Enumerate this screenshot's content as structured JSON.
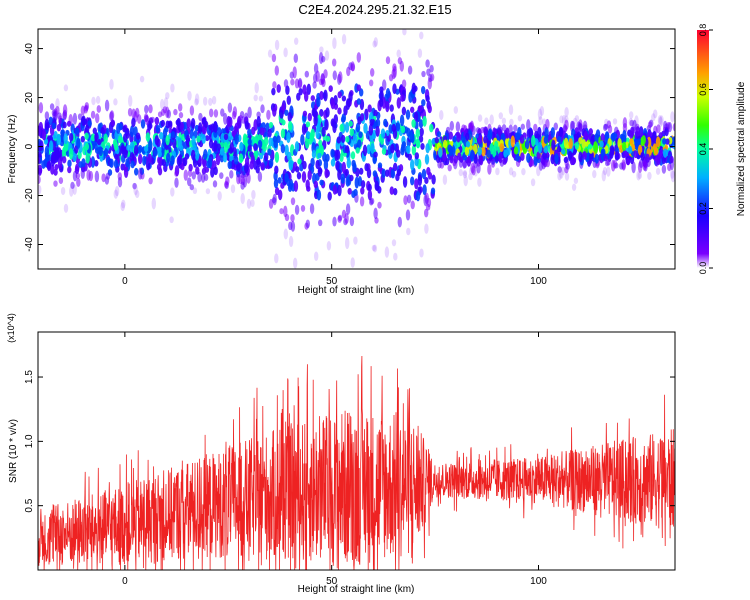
{
  "title": "C2E4.2024.295.21.32.E15",
  "colors": {
    "snr_line": "#ee2222",
    "scatter_base": "#6a00ff"
  },
  "chart_data": [
    {
      "type": "scatter",
      "name": "spectrogram",
      "xlabel": "Height of straight line (km)",
      "ylabel": "Frequency (Hz)",
      "xlim": [
        -21,
        133
      ],
      "ylim": [
        -50,
        48
      ],
      "xticks": [
        0,
        50,
        100
      ],
      "yticks": [
        -40,
        -20,
        0,
        20,
        40
      ],
      "grid": false,
      "colorbar": {
        "label": "Normalized spectral amplitude",
        "range": [
          0.0,
          0.8
        ],
        "ticks": [
          "0.0",
          "0.2",
          "0.4",
          "0.6",
          "0.8"
        ],
        "colormap": "rainbow"
      },
      "series": [
        {
          "description": "dense band of spectral points",
          "bands": [
            {
              "x": [
                -21,
                35
              ],
              "center": 0,
              "spread": 12
            },
            {
              "x": [
                35,
                75
              ],
              "center": 2,
              "spread": 25
            },
            {
              "x": [
                75,
                133
              ],
              "center": 0,
              "spread": 7
            }
          ]
        }
      ]
    },
    {
      "type": "line",
      "name": "snr",
      "xlabel": "Height of straight line (km)",
      "ylabel": "SNR (10 * v/v)",
      "y_multiplier": "(x10^4)",
      "xlim": [
        -21,
        133
      ],
      "ylim": [
        0,
        18500
      ],
      "xticks": [
        0,
        50,
        100
      ],
      "yticks": [
        0.5,
        1.0,
        1.5
      ],
      "ytick_labels": [
        "0.5",
        "1.0",
        "1.5"
      ],
      "grid": false,
      "envelope": [
        {
          "x": -21,
          "mean": 2500,
          "amp": 2500
        },
        {
          "x": 0,
          "mean": 3500,
          "amp": 3500
        },
        {
          "x": 20,
          "mean": 5000,
          "amp": 4500
        },
        {
          "x": 40,
          "mean": 6000,
          "amp": 6000
        },
        {
          "x": 55,
          "mean": 6500,
          "amp": 7000
        },
        {
          "x": 70,
          "mean": 6500,
          "amp": 6000
        },
        {
          "x": 75,
          "mean": 7000,
          "amp": 1500
        },
        {
          "x": 100,
          "mean": 7000,
          "amp": 2000
        },
        {
          "x": 133,
          "mean": 7000,
          "amp": 4500
        }
      ]
    }
  ]
}
